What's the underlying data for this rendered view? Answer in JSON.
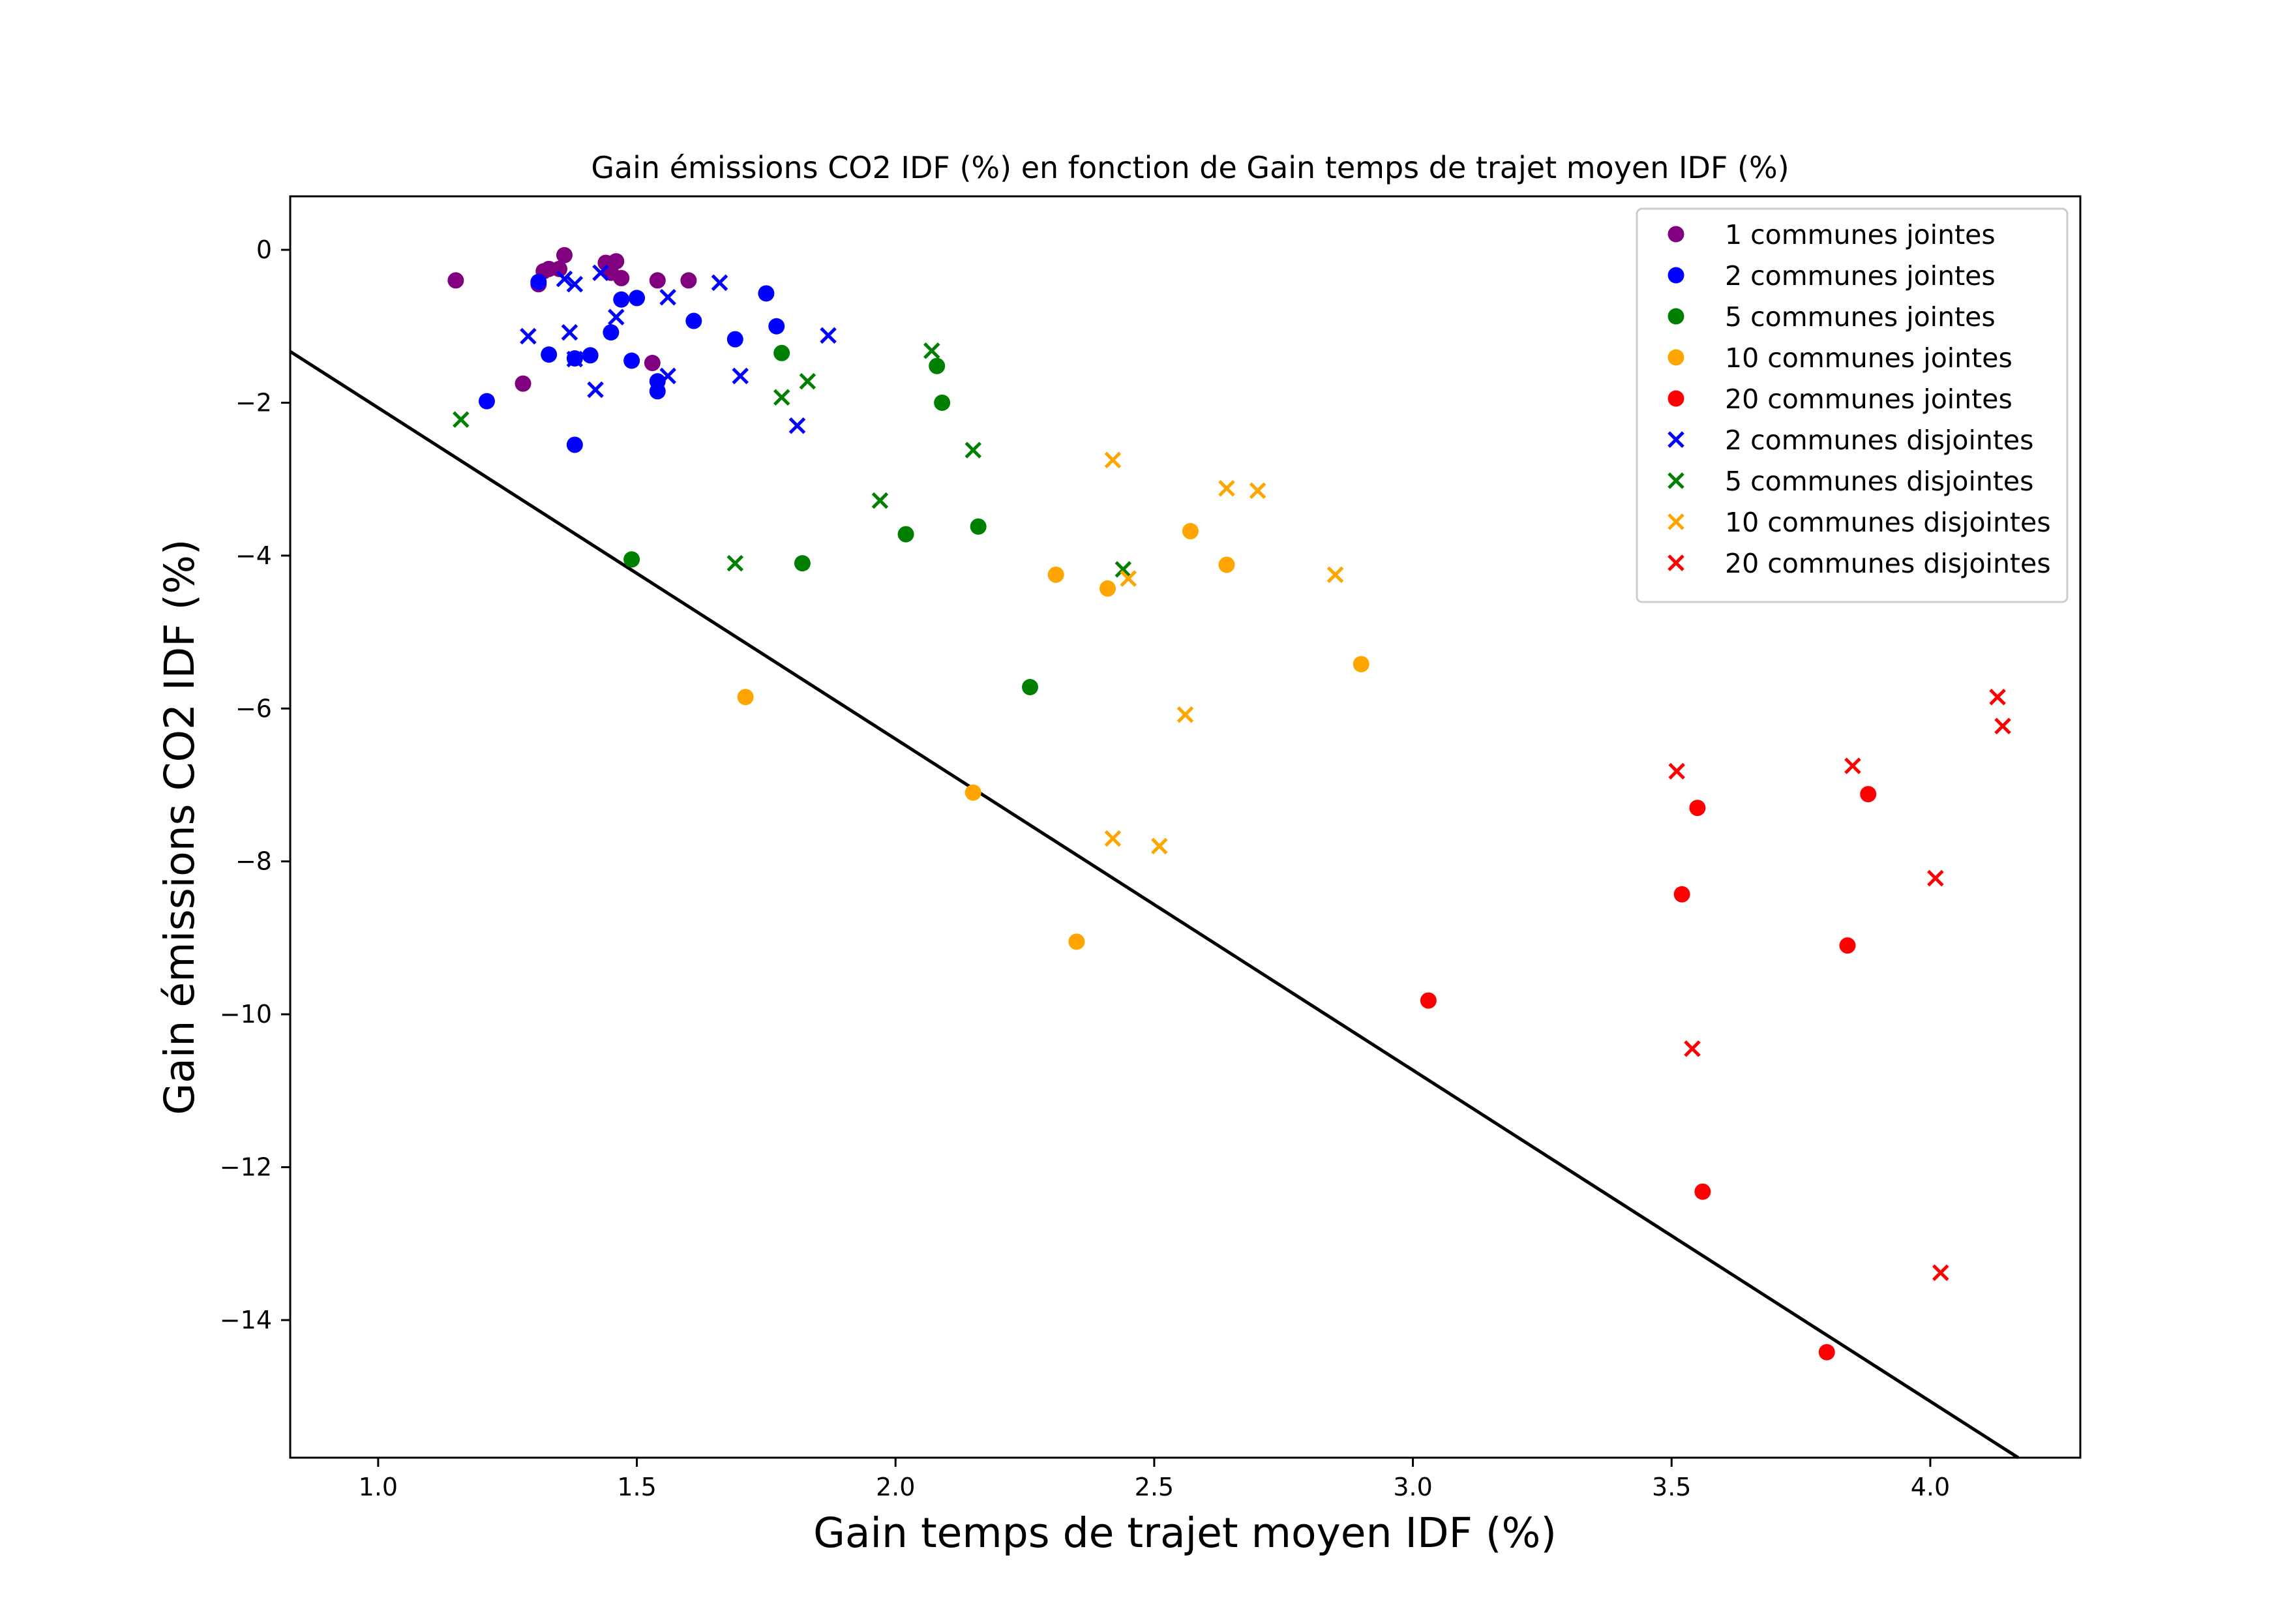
{
  "chart_data": {
    "type": "scatter",
    "title": "Gain émissions CO2 IDF (%) en fonction de Gain temps de trajet moyen IDF (%)",
    "xlabel": "Gain temps de trajet moyen IDF (%)",
    "ylabel": "Gain émissions CO2 IDF (%)",
    "xlim": [
      0.83,
      4.29
    ],
    "ylim": [
      -15.8,
      0.7
    ],
    "xticks": [
      1.0,
      1.5,
      2.0,
      2.5,
      3.0,
      3.5,
      4.0
    ],
    "xtick_labels": [
      "1.0",
      "1.5",
      "2.0",
      "2.5",
      "3.0",
      "3.5",
      "4.0"
    ],
    "yticks": [
      0,
      -2,
      -4,
      -6,
      -8,
      -10,
      -12,
      -14
    ],
    "ytick_labels": [
      "0",
      "−2",
      "−4",
      "−6",
      "−8",
      "−10",
      "−12",
      "−14"
    ],
    "grid": false,
    "legend_position": "top-right",
    "series": [
      {
        "name": "1 communes jointes",
        "marker": "circle",
        "color": "#800080",
        "points": [
          [
            1.15,
            -0.4
          ],
          [
            1.28,
            -1.75
          ],
          [
            1.31,
            -0.45
          ],
          [
            1.32,
            -0.28
          ],
          [
            1.33,
            -0.25
          ],
          [
            1.35,
            -0.25
          ],
          [
            1.36,
            -0.07
          ],
          [
            1.44,
            -0.17
          ],
          [
            1.45,
            -0.3
          ],
          [
            1.46,
            -0.15
          ],
          [
            1.47,
            -0.37
          ],
          [
            1.53,
            -1.48
          ],
          [
            1.54,
            -0.4
          ],
          [
            1.6,
            -0.4
          ]
        ]
      },
      {
        "name": "2 communes jointes",
        "marker": "circle",
        "color": "#0000ff",
        "points": [
          [
            1.21,
            -1.98
          ],
          [
            1.31,
            -0.42
          ],
          [
            1.33,
            -1.37
          ],
          [
            1.38,
            -2.55
          ],
          [
            1.38,
            -1.42
          ],
          [
            1.41,
            -1.38
          ],
          [
            1.45,
            -1.08
          ],
          [
            1.47,
            -0.65
          ],
          [
            1.49,
            -1.45
          ],
          [
            1.5,
            -0.63
          ],
          [
            1.54,
            -1.72
          ],
          [
            1.54,
            -1.85
          ],
          [
            1.61,
            -0.93
          ],
          [
            1.69,
            -1.17
          ],
          [
            1.75,
            -0.57
          ],
          [
            1.77,
            -1.0
          ]
        ]
      },
      {
        "name": "5 communes jointes",
        "marker": "circle",
        "color": "#008000",
        "points": [
          [
            1.49,
            -4.05
          ],
          [
            1.78,
            -1.35
          ],
          [
            1.82,
            -4.1
          ],
          [
            2.02,
            -3.72
          ],
          [
            2.08,
            -1.52
          ],
          [
            2.09,
            -2.0
          ],
          [
            2.16,
            -3.62
          ],
          [
            2.26,
            -5.72
          ]
        ]
      },
      {
        "name": "10 communes jointes",
        "marker": "circle",
        "color": "#ffa500",
        "points": [
          [
            1.71,
            -5.85
          ],
          [
            2.15,
            -7.1
          ],
          [
            2.31,
            -4.25
          ],
          [
            2.35,
            -9.05
          ],
          [
            2.41,
            -4.43
          ],
          [
            2.57,
            -3.68
          ],
          [
            2.64,
            -4.12
          ],
          [
            2.9,
            -5.42
          ]
        ]
      },
      {
        "name": "20 communes jointes",
        "marker": "circle",
        "color": "#ff0000",
        "points": [
          [
            3.03,
            -9.82
          ],
          [
            3.52,
            -8.43
          ],
          [
            3.55,
            -7.3
          ],
          [
            3.56,
            -12.32
          ],
          [
            3.8,
            -14.42
          ],
          [
            3.84,
            -9.1
          ],
          [
            3.88,
            -7.12
          ]
        ]
      },
      {
        "name": "2 communes disjointes",
        "marker": "x",
        "color": "#0000ff",
        "points": [
          [
            1.29,
            -1.13
          ],
          [
            1.36,
            -0.38
          ],
          [
            1.37,
            -1.08
          ],
          [
            1.38,
            -0.45
          ],
          [
            1.38,
            -1.43
          ],
          [
            1.42,
            -1.83
          ],
          [
            1.43,
            -0.3
          ],
          [
            1.46,
            -0.88
          ],
          [
            1.56,
            -0.62
          ],
          [
            1.56,
            -1.65
          ],
          [
            1.66,
            -0.43
          ],
          [
            1.7,
            -1.65
          ],
          [
            1.81,
            -2.3
          ],
          [
            1.87,
            -1.12
          ]
        ]
      },
      {
        "name": "5 communes disjointes",
        "marker": "x",
        "color": "#008000",
        "points": [
          [
            1.16,
            -2.22
          ],
          [
            1.69,
            -4.1
          ],
          [
            1.78,
            -1.93
          ],
          [
            1.83,
            -1.72
          ],
          [
            1.97,
            -3.28
          ],
          [
            2.07,
            -1.32
          ],
          [
            2.15,
            -2.62
          ],
          [
            2.44,
            -4.18
          ]
        ]
      },
      {
        "name": "10 communes disjointes",
        "marker": "x",
        "color": "#ffa500",
        "points": [
          [
            2.42,
            -2.75
          ],
          [
            2.42,
            -7.7
          ],
          [
            2.45,
            -4.3
          ],
          [
            2.51,
            -7.8
          ],
          [
            2.56,
            -6.08
          ],
          [
            2.64,
            -3.12
          ],
          [
            2.7,
            -3.15
          ],
          [
            2.85,
            -4.25
          ]
        ]
      },
      {
        "name": "20 communes disjointes",
        "marker": "x",
        "color": "#ff0000",
        "points": [
          [
            3.51,
            -6.82
          ],
          [
            3.54,
            -10.45
          ],
          [
            3.85,
            -6.75
          ],
          [
            4.01,
            -8.22
          ],
          [
            4.02,
            -13.38
          ],
          [
            4.13,
            -5.85
          ],
          [
            4.14,
            -6.23
          ]
        ]
      }
    ],
    "line": {
      "x": [
        0.83,
        4.17
      ],
      "y": [
        -1.33,
        -15.8
      ],
      "color": "#000000"
    }
  }
}
